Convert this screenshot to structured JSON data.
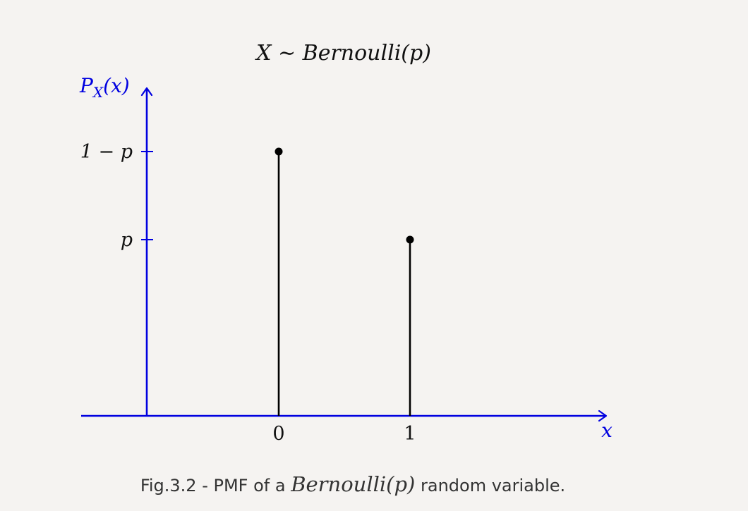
{
  "chart_data": {
    "type": "stem",
    "title": "X ∼ Bernoulli(p)",
    "ylabel": "P_X(x)",
    "xlabel": "x",
    "x": [
      0,
      1
    ],
    "y": [
      0.75,
      0.5
    ],
    "xticks": [
      "0",
      "1"
    ],
    "yticks": [
      {
        "label": "1 − p",
        "value": 0.75
      },
      {
        "label": "p",
        "value": 0.5
      }
    ],
    "axis_color": "#0000e0",
    "stem_color": "#000000",
    "grid": false,
    "legend": false
  },
  "caption": {
    "prefix": "Fig.3.2 - PMF of a ",
    "math": "Bernoulli(p)",
    "suffix": " random variable."
  }
}
